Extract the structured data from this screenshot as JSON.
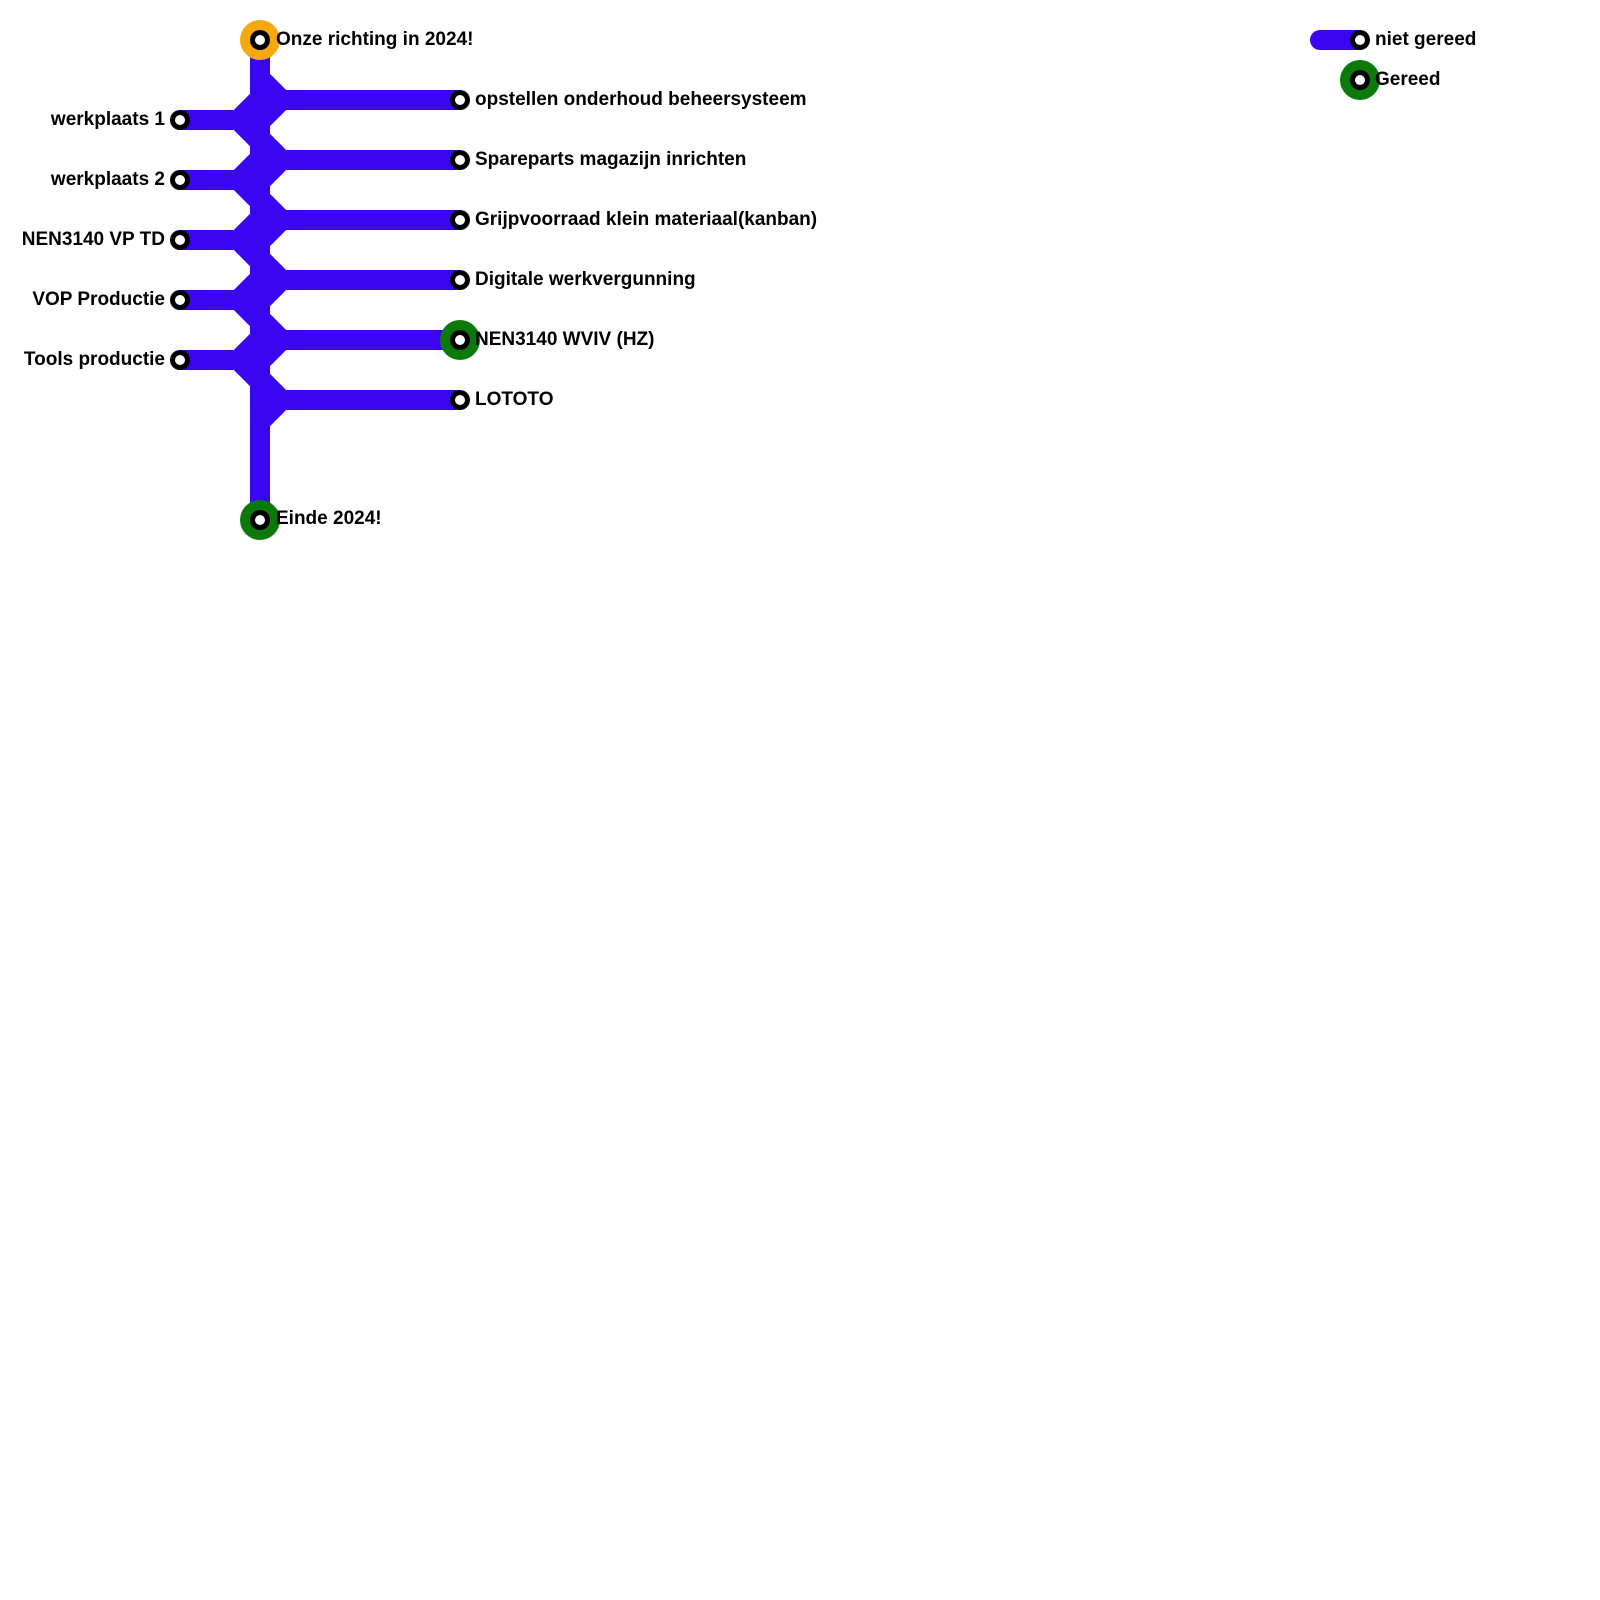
{
  "colors": {
    "line": "#3a05f0",
    "start_ring": "#f6a80f",
    "done_ring": "#0b7a0b",
    "station_border": "#000000",
    "station_fill": "#ffffff"
  },
  "start": {
    "label": "Onze richting in 2024!",
    "status": "start"
  },
  "end": {
    "label": "Einde 2024!",
    "status": "gereed"
  },
  "left_branches": [
    {
      "label": "werkplaats 1",
      "status": "niet gereed"
    },
    {
      "label": "werkplaats 2",
      "status": "niet gereed"
    },
    {
      "label": "NEN3140 VP TD",
      "status": "niet gereed"
    },
    {
      "label": "VOP Productie",
      "status": "niet gereed"
    },
    {
      "label": "Tools productie",
      "status": "niet gereed"
    }
  ],
  "right_branches": [
    {
      "label": "opstellen onderhoud beheersysteem",
      "status": "niet gereed"
    },
    {
      "label": "Spareparts magazijn inrichten",
      "status": "niet gereed"
    },
    {
      "label": "Grijpvoorraad klein materiaal(kanban)",
      "status": "niet gereed"
    },
    {
      "label": "Digitale werkvergunning",
      "status": "niet gereed"
    },
    {
      "label": "NEN3140 WVIV (HZ)",
      "status": "gereed"
    },
    {
      "label": "LOTOTO",
      "status": "niet gereed"
    }
  ],
  "legend": {
    "not_done": {
      "label": "niet gereed",
      "icon": "line-with-station-icon"
    },
    "done": {
      "label": "Gereed",
      "icon": "done-station-icon"
    }
  }
}
